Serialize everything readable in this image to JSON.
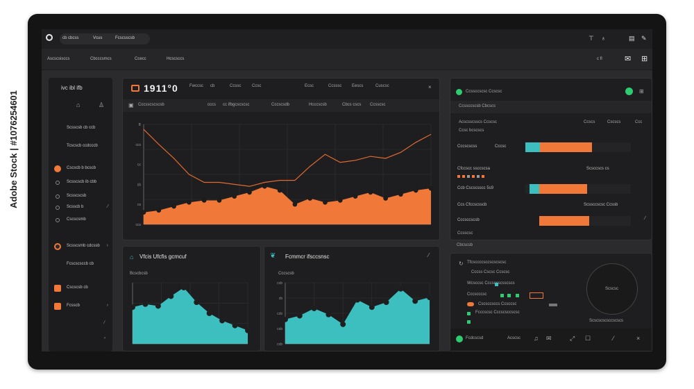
{
  "watermark": "Adobe Stock | #1076254601",
  "topbar": {
    "tabs": [
      "cb cbcss",
      "Vcus",
      "Fcscsscsb"
    ],
    "right_icons": [
      "bulb-icon",
      "bell-icon",
      "document-icon",
      "pen-icon"
    ]
  },
  "subbar": {
    "nav": [
      "Ascscsisccs",
      "Cbcccsmcs",
      "Ccecc",
      "Hcscsccs"
    ],
    "right_text": "c fl"
  },
  "sidebar": {
    "title": "ivc ibl ifb",
    "items": [
      "Scsscsb cb ccb",
      "Tcscscb ccdcccb",
      "Cscscb b bcscb",
      "Scsscscb ib cbb",
      "Scsscscsb",
      "Scsscb b",
      "Cscscsmb",
      "Scsscsmb cdcssb",
      "Fcscscsccb cb",
      "Cscscsb cb",
      "Fcsscb"
    ]
  },
  "main_chart": {
    "big_number": "1911°0",
    "header_items": [
      "Fwccsc",
      "cb",
      "Ccssc",
      "Ccsc",
      "Ecsc",
      "Ccsssc",
      "Eescs",
      "Cuscsc"
    ],
    "sub_items": [
      "Cccsscscscsb",
      "cccs",
      "cc ifbgcscscsc",
      "Cccscsdb",
      "Hcccscsb",
      "Cbcs cscs",
      "Ccsscsc"
    ],
    "y_ticks": [
      "B",
      "ccs",
      "cc",
      "cb",
      "cs",
      "ccs"
    ]
  },
  "chart_data": [
    {
      "type": "area",
      "title": "",
      "x": [
        0,
        1,
        2,
        3,
        4,
        5,
        6,
        7,
        8,
        9,
        10,
        11,
        12,
        13,
        14,
        15,
        16,
        17,
        18,
        19
      ],
      "series": [
        {
          "values": [
            12,
            14,
            18,
            22,
            24,
            24,
            28,
            32,
            38,
            34,
            20,
            26,
            22,
            24,
            28,
            32,
            26,
            30,
            34,
            36
          ]
        },
        {
          "values": [
            95,
            80,
            66,
            50,
            42,
            42,
            40,
            38,
            42,
            44,
            44,
            58,
            70,
            62,
            64,
            68,
            66,
            72,
            82,
            90
          ]
        }
      ]
    },
    {
      "type": "area",
      "title": "",
      "x": [
        0,
        1,
        2,
        3,
        4,
        5,
        6,
        7,
        8,
        9
      ],
      "series": [
        {
          "values": [
            60,
            65,
            62,
            78,
            92,
            68,
            50,
            38,
            30,
            22
          ]
        }
      ]
    },
    {
      "type": "area",
      "title": "",
      "x": [
        0,
        1,
        2,
        3,
        4,
        5,
        6,
        7,
        8,
        9,
        10
      ],
      "series": [
        {
          "values": [
            40,
            46,
            58,
            48,
            32,
            72,
            60,
            68,
            90,
            70,
            76
          ]
        }
      ]
    }
  ],
  "bottom_left": {
    "title": "Vfcis Ufcfis gcmcuf",
    "small": "Bcscbcsb",
    "y_ticks": [
      "ccb",
      "ccb",
      "ccb",
      "ccb"
    ]
  },
  "bottom_mid": {
    "title": "Fcmmcr ifsccsnsc",
    "small": "Cccscsb",
    "y_ticks": [
      "ccb",
      "cb",
      "ccb",
      "ccb",
      "ccb"
    ]
  },
  "right_top": {
    "title": "Ccssccscsc Ccscsc",
    "sub": "Ccssccscsb Cbcscs",
    "header": [
      "Acscsscsscs Ccscsc",
      "Ccscs",
      "Cscscs",
      "Ccc"
    ],
    "header2": "Ccsc bcscscs",
    "rows": [
      {
        "label": "Cccscscss",
        "extra": "Cccsc",
        "teal": 0.18,
        "orange": 0.82
      },
      {
        "label": "Cfccscc ssccscsa",
        "right": "Scsccscs cs"
      },
      {
        "label": "Ccb Cscscsscc 5s9",
        "teal": 0.14,
        "orange": 0.86
      },
      {
        "label": "Ccs Cfccscsscb",
        "right": "Scssccscsc Ccssb"
      },
      {
        "label": "Cccsccscsb",
        "teal": 0,
        "orange": 1
      },
      {
        "label": "Ccsscsc"
      }
    ],
    "footer": "Cbcscsb"
  },
  "right_bottom": {
    "title": "Tfcsccccsccscscscsc",
    "rows": [
      "Cccss Cscsc Ccscsc",
      "Wcsccsc Cccsccscsscscs",
      "Cccscccsc",
      "Cscsccsccs Ccsccsc",
      "Fcccscsc Cccscsccscsc"
    ],
    "circle_label": "Scscsc",
    "circle_caption": "Scscscscsccscscs",
    "footer_left": "Fcdcscsd",
    "footer_mid": "Acscsc"
  },
  "colors": {
    "accent_orange": "#f07838",
    "accent_teal": "#3dbfbf",
    "green": "#2ecc71"
  }
}
